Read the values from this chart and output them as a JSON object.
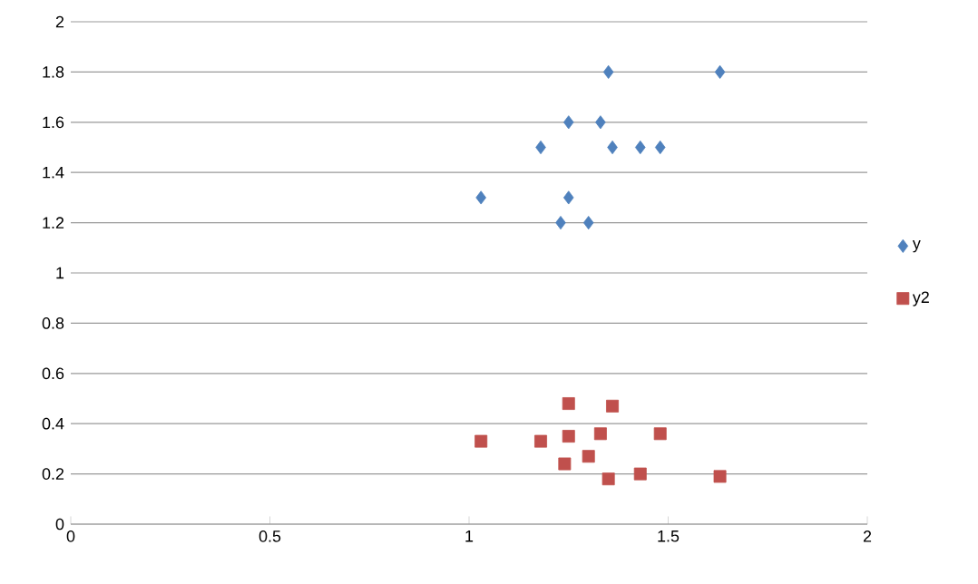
{
  "chart_data": {
    "type": "scatter",
    "xlim": [
      0,
      2
    ],
    "ylim": [
      0,
      2
    ],
    "xticks": [
      0,
      0.5,
      1,
      1.5,
      2
    ],
    "yticks": [
      0,
      0.2,
      0.4,
      0.6,
      0.8,
      1,
      1.2,
      1.4,
      1.6,
      1.8,
      2
    ],
    "grid": "y",
    "legend": "right",
    "series": [
      {
        "name": "y",
        "color": "#4f81bd",
        "marker": "diamond",
        "x": [
          1.35,
          1.63,
          1.25,
          1.33,
          1.18,
          1.36,
          1.43,
          1.48,
          1.03,
          1.25,
          1.23,
          1.3
        ],
        "values": [
          1.8,
          1.8,
          1.6,
          1.6,
          1.5,
          1.5,
          1.5,
          1.5,
          1.3,
          1.3,
          1.2,
          1.2
        ]
      },
      {
        "name": "y2",
        "color": "#c0504d",
        "marker": "square",
        "x": [
          1.25,
          1.36,
          1.03,
          1.18,
          1.25,
          1.33,
          1.48,
          1.24,
          1.3,
          1.35,
          1.43,
          1.63
        ],
        "values": [
          0.48,
          0.47,
          0.33,
          0.33,
          0.35,
          0.36,
          0.36,
          0.24,
          0.27,
          0.18,
          0.2,
          0.19
        ]
      }
    ]
  }
}
